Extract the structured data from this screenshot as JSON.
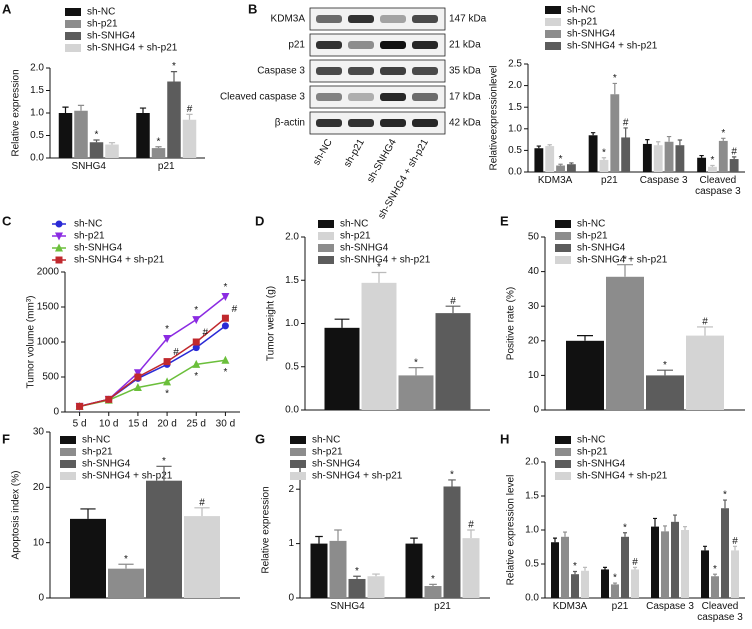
{
  "blot": {
    "panel": "B",
    "proteins": [
      "KDM3A",
      "p21",
      "Caspase 3",
      "Cleaved caspase 3",
      "β-actin"
    ],
    "sizes": [
      "147 kDa",
      "21 kDa",
      "35 kDa",
      "17 kDa",
      "42 kDa"
    ],
    "lanes": [
      "sh-NC",
      "sh-p21",
      "sh-SNHG4",
      "sh-SNHG4 + sh-p21"
    ]
  },
  "chart_data": [
    {
      "type": "bar",
      "panel": "A",
      "ylabel": "Relative expression",
      "categories": [
        "SNHG4",
        "p21"
      ],
      "ylim": [
        0,
        2.0
      ],
      "yticks": [
        {
          "value": 0,
          "label": "0.0"
        },
        {
          "value": 0.5,
          "label": "0.5"
        },
        {
          "value": 1,
          "label": "1.0"
        },
        {
          "value": 1.5,
          "label": "1.5"
        },
        {
          "value": 2,
          "label": "2.0"
        }
      ],
      "series": [
        {
          "name": "sh-NC",
          "color": "#111111",
          "values": [
            1.0,
            1.0
          ],
          "errors": [
            0.13,
            0.11
          ],
          "annotations": [
            null,
            null
          ]
        },
        {
          "name": "sh-p21",
          "color": "#8c8c8c",
          "values": [
            1.05,
            0.22
          ],
          "errors": [
            0.12,
            0.03
          ],
          "annotations": [
            null,
            "*"
          ]
        },
        {
          "name": "sh-SNHG4",
          "color": "#5c5c5c",
          "values": [
            0.35,
            1.7
          ],
          "errors": [
            0.05,
            0.22
          ],
          "annotations": [
            "*",
            "*"
          ]
        },
        {
          "name": "sh-SNHG4 + sh-p21",
          "color": "#d4d4d4",
          "values": [
            0.3,
            0.85
          ],
          "errors": [
            0.04,
            0.12
          ],
          "annotations": [
            null,
            "#"
          ]
        }
      ]
    },
    {
      "type": "bar",
      "ylabel": "Relativeexpressionlevel",
      "categories": [
        "KDM3A",
        "p21",
        "Caspase 3",
        "Cleaved caspase 3"
      ],
      "ylim": [
        0,
        2.5
      ],
      "yticks": [
        {
          "value": 0,
          "label": "0.0"
        },
        {
          "value": 0.5,
          "label": "0.5"
        },
        {
          "value": 1,
          "label": "1.0"
        },
        {
          "value": 1.5,
          "label": "1.5"
        },
        {
          "value": 2,
          "label": "2.0"
        },
        {
          "value": 2.5,
          "label": "2.5"
        }
      ],
      "series": [
        {
          "name": "sh-NC",
          "color": "#111111",
          "values": [
            0.55,
            0.85,
            0.65,
            0.33
          ],
          "errors": [
            0.05,
            0.06,
            0.1,
            0.05
          ],
          "annotations": [
            null,
            null,
            null,
            null
          ]
        },
        {
          "name": "sh-p21",
          "color": "#d4d4d4",
          "values": [
            0.6,
            0.28,
            0.62,
            0.12
          ],
          "errors": [
            0.03,
            0.05,
            0.08,
            0.03
          ],
          "annotations": [
            null,
            "*",
            null,
            "*"
          ]
        },
        {
          "name": "sh-SNHG4",
          "color": "#8c8c8c",
          "values": [
            0.15,
            1.8,
            0.7,
            0.72
          ],
          "errors": [
            0.03,
            0.25,
            0.12,
            0.06
          ],
          "annotations": [
            "*",
            "*",
            null,
            "*"
          ]
        },
        {
          "name": "sh-SNHG4 + sh-p21",
          "color": "#5c5c5c",
          "values": [
            0.18,
            0.8,
            0.62,
            0.3
          ],
          "errors": [
            0.03,
            0.22,
            0.12,
            0.05
          ],
          "annotations": [
            null,
            "#",
            null,
            "#"
          ]
        }
      ]
    },
    {
      "type": "line",
      "panel": "C",
      "ylabel": "Tumor volume (mm³)",
      "categories": [
        "5 d",
        "10 d",
        "15 d",
        "20 d",
        "25 d",
        "30 d"
      ],
      "ylim": [
        0,
        2000
      ],
      "yticks": [
        0,
        500,
        1000,
        1500,
        2000
      ],
      "series": [
        {
          "name": "sh-NC",
          "color": "#2a2ad6",
          "marker": "circle",
          "values": [
            80,
            180,
            480,
            680,
            920,
            1230
          ],
          "annotations": [
            null,
            null,
            null,
            null,
            null,
            null
          ]
        },
        {
          "name": "sh-p21",
          "color": "#8b2be2",
          "marker": "triangle-down",
          "values": [
            80,
            180,
            560,
            1050,
            1320,
            1650
          ],
          "annotations": [
            null,
            null,
            null,
            "*",
            "*",
            "*"
          ]
        },
        {
          "name": "sh-SNHG4",
          "color": "#6bbf3b",
          "marker": "triangle-up",
          "values": [
            80,
            170,
            350,
            430,
            680,
            740
          ],
          "annotations": [
            null,
            null,
            null,
            "*",
            "*",
            "*"
          ]
        },
        {
          "name": "sh-SNHG4 + sh-p21",
          "color": "#c0282d",
          "marker": "square",
          "values": [
            80,
            180,
            500,
            720,
            1000,
            1340
          ],
          "annotations": [
            null,
            null,
            null,
            "#",
            "#",
            "#"
          ]
        }
      ]
    },
    {
      "type": "bar",
      "panel": "D",
      "ylabel": "Tumor weight (g)",
      "ylim": [
        0,
        2.0
      ],
      "yticks": [
        {
          "value": 0,
          "label": "0.0"
        },
        {
          "value": 0.5,
          "label": "0.5"
        },
        {
          "value": 1,
          "label": "1.0"
        },
        {
          "value": 1.5,
          "label": "1.5"
        },
        {
          "value": 2,
          "label": "2.0"
        }
      ],
      "series": [
        {
          "name": "sh-NC",
          "color": "#111111",
          "values": [
            0.95
          ],
          "errors": [
            0.1
          ],
          "annotations": [
            null
          ]
        },
        {
          "name": "sh-p21",
          "color": "#d4d4d4",
          "values": [
            1.47
          ],
          "errors": [
            0.12
          ],
          "annotations": [
            "*"
          ]
        },
        {
          "name": "sh-SNHG4",
          "color": "#8c8c8c",
          "values": [
            0.4
          ],
          "errors": [
            0.09
          ],
          "annotations": [
            "*"
          ]
        },
        {
          "name": "sh-SNHG4 + sh-p21",
          "color": "#5c5c5c",
          "values": [
            1.12
          ],
          "errors": [
            0.08
          ],
          "annotations": [
            "#"
          ]
        }
      ]
    },
    {
      "type": "bar",
      "panel": "E",
      "ylabel": "Positive rate (%)",
      "ylim": [
        0,
        50
      ],
      "yticks": [
        0,
        10,
        20,
        30,
        40,
        50
      ],
      "series": [
        {
          "name": "sh-NC",
          "color": "#111111",
          "values": [
            20
          ],
          "errors": [
            1.5
          ],
          "annotations": [
            null
          ]
        },
        {
          "name": "sh-p21",
          "color": "#8c8c8c",
          "values": [
            38.5
          ],
          "errors": [
            3.5
          ],
          "annotations": [
            "*"
          ]
        },
        {
          "name": "sh-SNHG4",
          "color": "#5c5c5c",
          "values": [
            10
          ],
          "errors": [
            1.5
          ],
          "annotations": [
            "*"
          ]
        },
        {
          "name": "sh-SNHG4 + sh-p21",
          "color": "#d4d4d4",
          "values": [
            21.5
          ],
          "errors": [
            2.5
          ],
          "annotations": [
            "#"
          ]
        }
      ]
    },
    {
      "type": "bar",
      "panel": "F",
      "ylabel": "Apoptosis index (%)",
      "ylim": [
        0,
        30
      ],
      "yticks": [
        0,
        10,
        20,
        30
      ],
      "series": [
        {
          "name": "sh-NC",
          "color": "#111111",
          "values": [
            14.3
          ],
          "errors": [
            1.8
          ],
          "annotations": [
            null
          ]
        },
        {
          "name": "sh-p21",
          "color": "#8c8c8c",
          "values": [
            5.3
          ],
          "errors": [
            0.8
          ],
          "annotations": [
            "*"
          ]
        },
        {
          "name": "sh-SNHG4",
          "color": "#5c5c5c",
          "values": [
            21.2
          ],
          "errors": [
            2.6
          ],
          "annotations": [
            "*"
          ]
        },
        {
          "name": "sh-SNHG4 + sh-p21",
          "color": "#d4d4d4",
          "values": [
            14.8
          ],
          "errors": [
            1.5
          ],
          "annotations": [
            "#"
          ]
        }
      ]
    },
    {
      "type": "bar",
      "panel": "G",
      "ylabel": "Relative expression",
      "categories": [
        "SNHG4",
        "p21"
      ],
      "ylim": [
        0,
        2.5
      ],
      "yticks": [
        0,
        1,
        2
      ],
      "series": [
        {
          "name": "sh-NC",
          "color": "#111111",
          "values": [
            1.0,
            1.0
          ],
          "errors": [
            0.13,
            0.1
          ],
          "annotations": [
            null,
            null
          ]
        },
        {
          "name": "sh-p21",
          "color": "#8c8c8c",
          "values": [
            1.05,
            0.22
          ],
          "errors": [
            0.2,
            0.03
          ],
          "annotations": [
            null,
            "*"
          ]
        },
        {
          "name": "sh-SNHG4",
          "color": "#5c5c5c",
          "values": [
            0.35,
            2.05
          ],
          "errors": [
            0.05,
            0.12
          ],
          "annotations": [
            "*",
            "*"
          ]
        },
        {
          "name": "sh-SNHG4 + sh-p21",
          "color": "#d4d4d4",
          "values": [
            0.4,
            1.1
          ],
          "errors": [
            0.04,
            0.15
          ],
          "annotations": [
            null,
            "#"
          ]
        }
      ]
    },
    {
      "type": "bar",
      "panel": "H",
      "ylabel": "Relative expression level",
      "categories": [
        "KDM3A",
        "p21",
        "Caspase 3",
        "Cleaved caspase 3"
      ],
      "ylim": [
        0,
        2.0
      ],
      "yticks": [
        {
          "value": 0,
          "label": "0.0"
        },
        {
          "value": 0.5,
          "label": "0.5"
        },
        {
          "value": 1,
          "label": "1.0"
        },
        {
          "value": 1.5,
          "label": "1.5"
        },
        {
          "value": 2,
          "label": "2.0"
        }
      ],
      "series": [
        {
          "name": "sh-NC",
          "color": "#111111",
          "values": [
            0.82,
            0.42,
            1.05,
            0.7
          ],
          "errors": [
            0.06,
            0.03,
            0.12,
            0.06
          ],
          "annotations": [
            null,
            null,
            null,
            null
          ]
        },
        {
          "name": "sh-p21",
          "color": "#8c8c8c",
          "values": [
            0.9,
            0.2,
            0.98,
            0.32
          ],
          "errors": [
            0.07,
            0.02,
            0.08,
            0.03
          ],
          "annotations": [
            null,
            "*",
            null,
            "*"
          ]
        },
        {
          "name": "sh-SNHG4",
          "color": "#5c5c5c",
          "values": [
            0.35,
            0.9,
            1.12,
            1.32
          ],
          "errors": [
            0.04,
            0.06,
            0.1,
            0.12
          ],
          "annotations": [
            "*",
            "*",
            null,
            "*"
          ]
        },
        {
          "name": "sh-SNHG4 + sh-p21",
          "color": "#d4d4d4",
          "values": [
            0.4,
            0.42,
            1.0,
            0.7
          ],
          "errors": [
            0.05,
            0.03,
            0.05,
            0.06
          ],
          "annotations": [
            null,
            "#",
            null,
            "#"
          ]
        }
      ]
    }
  ]
}
